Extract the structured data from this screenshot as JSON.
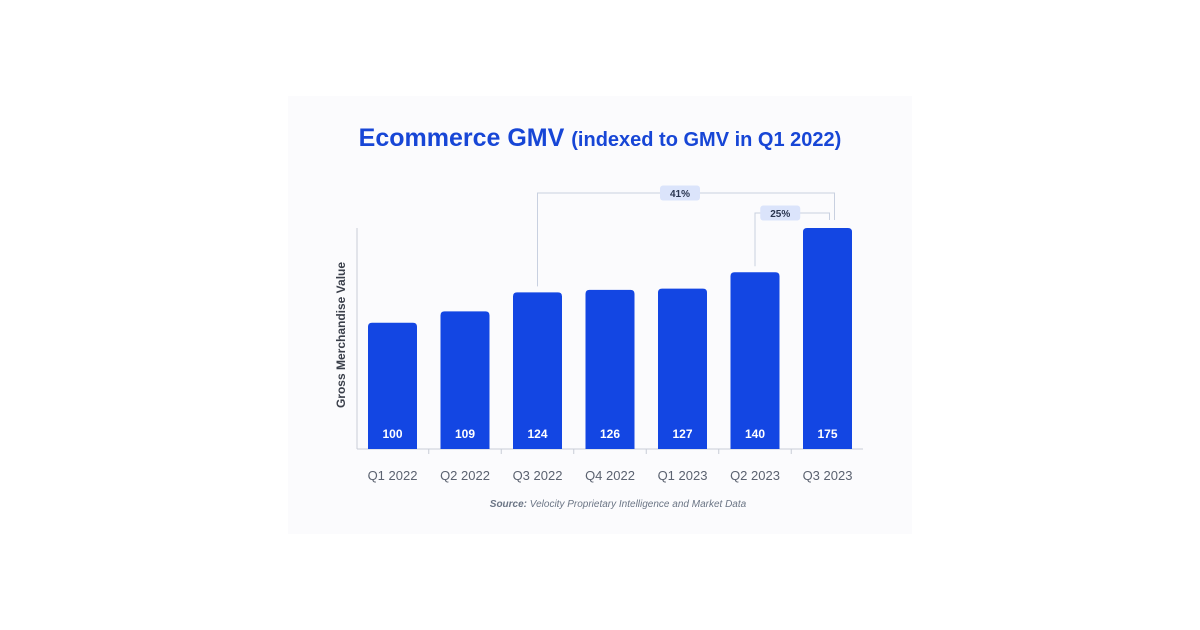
{
  "chart_data": {
    "type": "bar",
    "title": "Ecommerce GMV",
    "subtitle": "(indexed to GMV in Q1 2022)",
    "ylabel": "Gross Merchandise Value",
    "xlabel": "",
    "categories": [
      "Q1 2022",
      "Q2 2022",
      "Q3 2022",
      "Q4 2022",
      "Q1 2023",
      "Q2 2023",
      "Q3 2023"
    ],
    "values": [
      100,
      109,
      124,
      126,
      127,
      140,
      175
    ],
    "value_labels": [
      "100",
      "109",
      "124",
      "126",
      "127",
      "140",
      "175"
    ],
    "annotations": [
      {
        "label": "41%",
        "from": "Q3 2022",
        "to": "Q3 2023"
      },
      {
        "label": "25%",
        "from": "Q2 2023",
        "to": "Q3 2023"
      }
    ],
    "grid": false,
    "legend": "none",
    "colors": {
      "bar": "#1346e3",
      "title": "#1746d6",
      "bar_label": "#ffffff",
      "annotation_fill": "#dbe4fb",
      "bracket": "#c8d0e0"
    }
  },
  "source": {
    "label": "Source:",
    "text": " Velocity Proprietary Intelligence and Market Data"
  }
}
